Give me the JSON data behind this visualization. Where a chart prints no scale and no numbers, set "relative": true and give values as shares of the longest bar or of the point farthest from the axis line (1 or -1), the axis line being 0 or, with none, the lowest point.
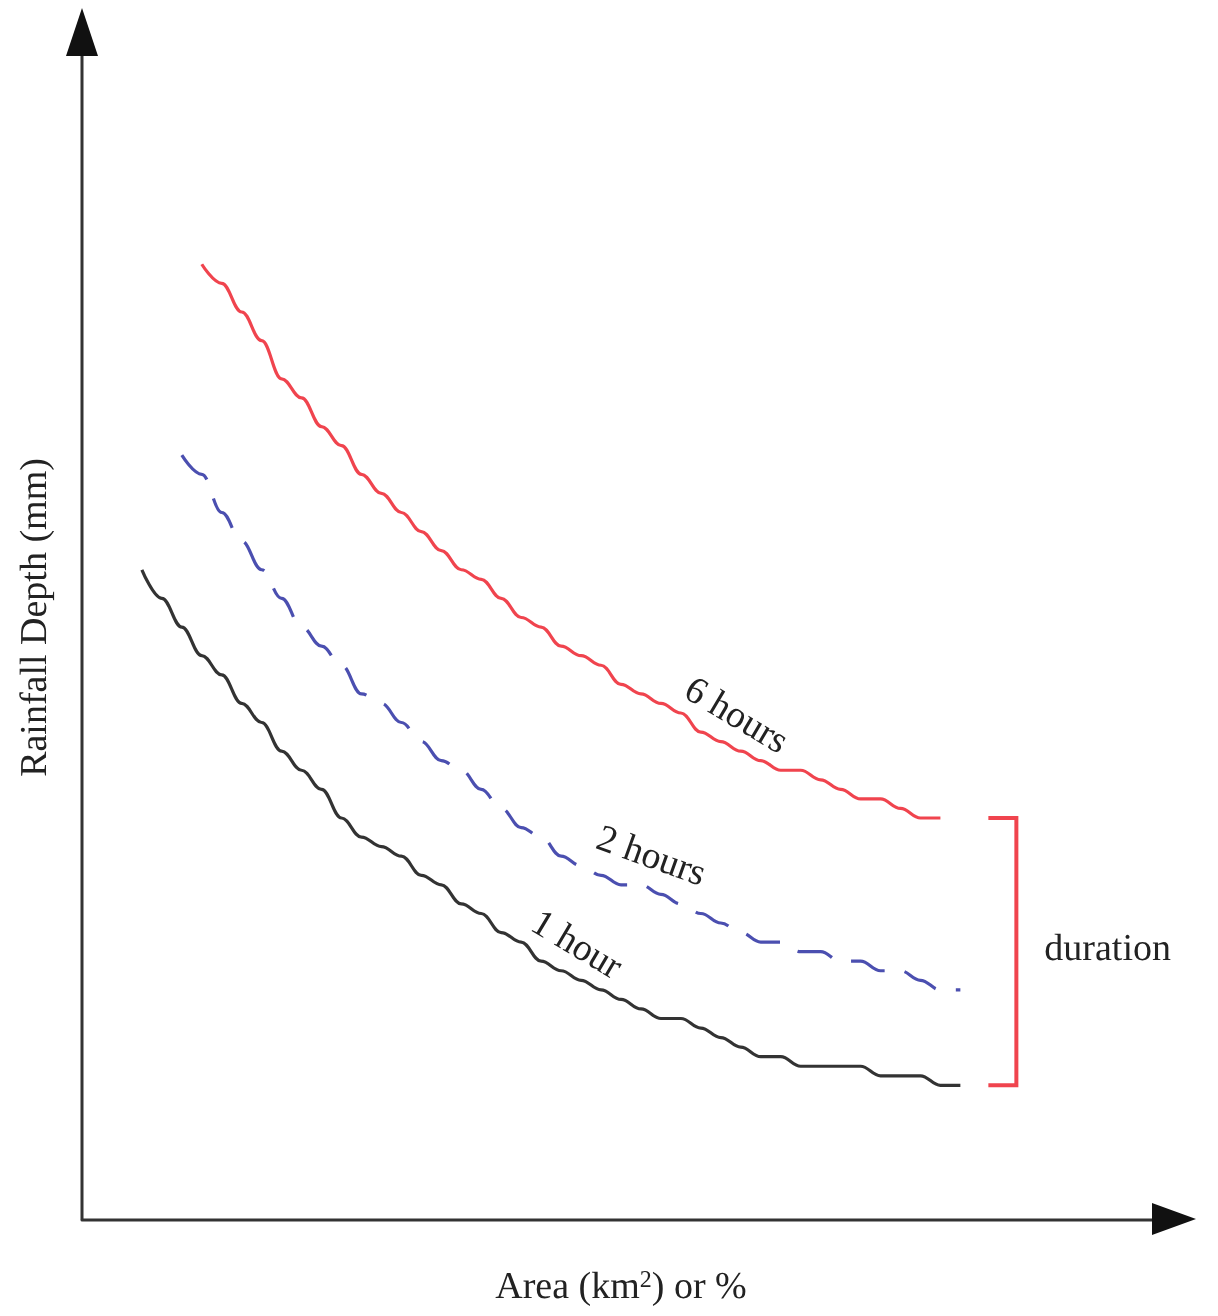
{
  "chart_data": {
    "type": "line",
    "relative": true,
    "xlabel": "Area (km$^{2}$) or %",
    "ylabel": "Rainfall Depth (mm)",
    "annotations": [
      "duration"
    ],
    "legend": false,
    "marker": "none",
    "grid": false,
    "categories": [
      null,
      null,
      null,
      null,
      null,
      null,
      null,
      null,
      null,
      null,
      null,
      null,
      null,
      null,
      null,
      null,
      null,
      null,
      null,
      null,
      null,
      null,
      null,
      null,
      null,
      null,
      null,
      null,
      null,
      null,
      null,
      null,
      null,
      null,
      null,
      null,
      null,
      null,
      null,
      null,
      null,
      null,
      null,
      null,
      null,
      null,
      null,
      null,
      null,
      null,
      null,
      null,
      null,
      null,
      null
    ],
    "series": [
      {
        "name": "1 hour",
        "color": "#333333",
        "line_style": "solid",
        "values": [
          null,
          null,
          null,
          0.68,
          0.65,
          0.62,
          0.59,
          0.57,
          0.54,
          0.52,
          0.49,
          0.47,
          0.45,
          0.42,
          0.4,
          0.39,
          0.38,
          0.36,
          0.35,
          0.33,
          0.32,
          0.3,
          0.29,
          0.27,
          0.26,
          0.25,
          0.24,
          0.23,
          0.22,
          0.21,
          0.21,
          0.2,
          0.19,
          0.18,
          0.17,
          0.17,
          0.16,
          0.16,
          0.16,
          0.16,
          0.15,
          0.15,
          0.15,
          0.14,
          0.14,
          null,
          null,
          null,
          null,
          null,
          null,
          null,
          null,
          null,
          null
        ]
      },
      {
        "name": "2 hours",
        "color": "#4b4fb0",
        "line_style": "dashed",
        "values": [
          null,
          null,
          null,
          null,
          null,
          0.8,
          0.78,
          0.74,
          0.71,
          0.68,
          0.65,
          0.62,
          0.6,
          0.58,
          0.55,
          0.54,
          0.52,
          0.5,
          0.48,
          0.47,
          0.45,
          0.43,
          0.41,
          0.4,
          0.38,
          0.37,
          0.36,
          0.35,
          0.35,
          0.34,
          0.33,
          0.32,
          0.31,
          0.3,
          0.29,
          0.29,
          0.28,
          0.28,
          0.27,
          0.27,
          0.26,
          0.26,
          0.25,
          0.24,
          0.24,
          null,
          null,
          null,
          null,
          null,
          null,
          null,
          null,
          null,
          null
        ]
      },
      {
        "name": "6 hours",
        "color": "#f0444e",
        "line_style": "solid",
        "values": [
          null,
          null,
          null,
          null,
          null,
          null,
          1.0,
          0.98,
          0.95,
          0.92,
          0.88,
          0.86,
          0.83,
          0.81,
          0.78,
          0.76,
          0.74,
          0.72,
          0.7,
          0.68,
          0.67,
          0.65,
          0.63,
          0.62,
          0.6,
          0.59,
          0.58,
          0.56,
          0.55,
          0.54,
          0.53,
          0.51,
          0.5,
          0.49,
          0.48,
          0.47,
          0.47,
          0.46,
          0.45,
          0.44,
          0.44,
          0.43,
          0.42,
          0.42,
          null,
          null,
          null,
          null,
          null,
          null,
          null,
          null,
          null,
          null,
          null
        ]
      }
    ]
  }
}
